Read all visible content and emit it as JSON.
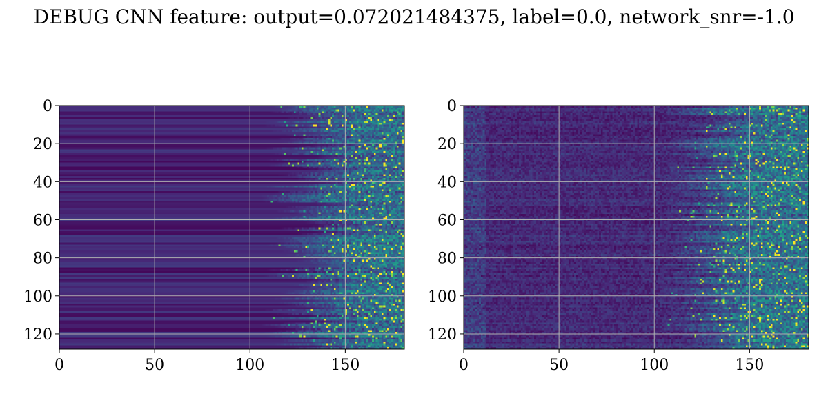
{
  "figure": {
    "title": "DEBUG CNN feature: output=0.072021484375, label=0.0, network_snr=-1.0"
  },
  "chart_data": [
    {
      "type": "heatmap",
      "title": "",
      "xlabel": "",
      "ylabel": "",
      "xlim": [
        0,
        181
      ],
      "ylim": [
        128,
        0
      ],
      "x_ticks": [
        0,
        50,
        100,
        150
      ],
      "x_tick_labels": [
        "0",
        "50",
        "100",
        "150"
      ],
      "y_ticks": [
        0,
        20,
        40,
        60,
        80,
        100,
        120
      ],
      "y_tick_labels": [
        "0",
        "20",
        "40",
        "60",
        "80",
        "100",
        "120"
      ],
      "grid": true,
      "colormap": "viridis",
      "rows": 128,
      "cols": 181,
      "pattern": "dark purple horizontal bands on left; bright green/yellow noisy activations concentrated at columns ~120-181",
      "onset_column": 120
    },
    {
      "type": "heatmap",
      "title": "",
      "xlabel": "",
      "ylabel": "",
      "xlim": [
        0,
        181
      ],
      "ylim": [
        128,
        0
      ],
      "x_ticks": [
        0,
        50,
        100,
        150
      ],
      "x_tick_labels": [
        "0",
        "50",
        "100",
        "150"
      ],
      "y_ticks": [
        0,
        20,
        40,
        60,
        80,
        100,
        120
      ],
      "y_tick_labels": [
        "0",
        "20",
        "40",
        "60",
        "80",
        "100",
        "120"
      ],
      "grid": true,
      "colormap": "viridis",
      "rows": 128,
      "cols": 181,
      "pattern": "noisy dark purple background with speckle near left edge; bright activations at columns ~120-181",
      "onset_column": 115
    }
  ],
  "colors": {
    "viridis_low": "#440154",
    "viridis_mid": "#21918c",
    "viridis_high": "#fde725",
    "grid": "#b0b0b0",
    "axis": "#000000"
  }
}
